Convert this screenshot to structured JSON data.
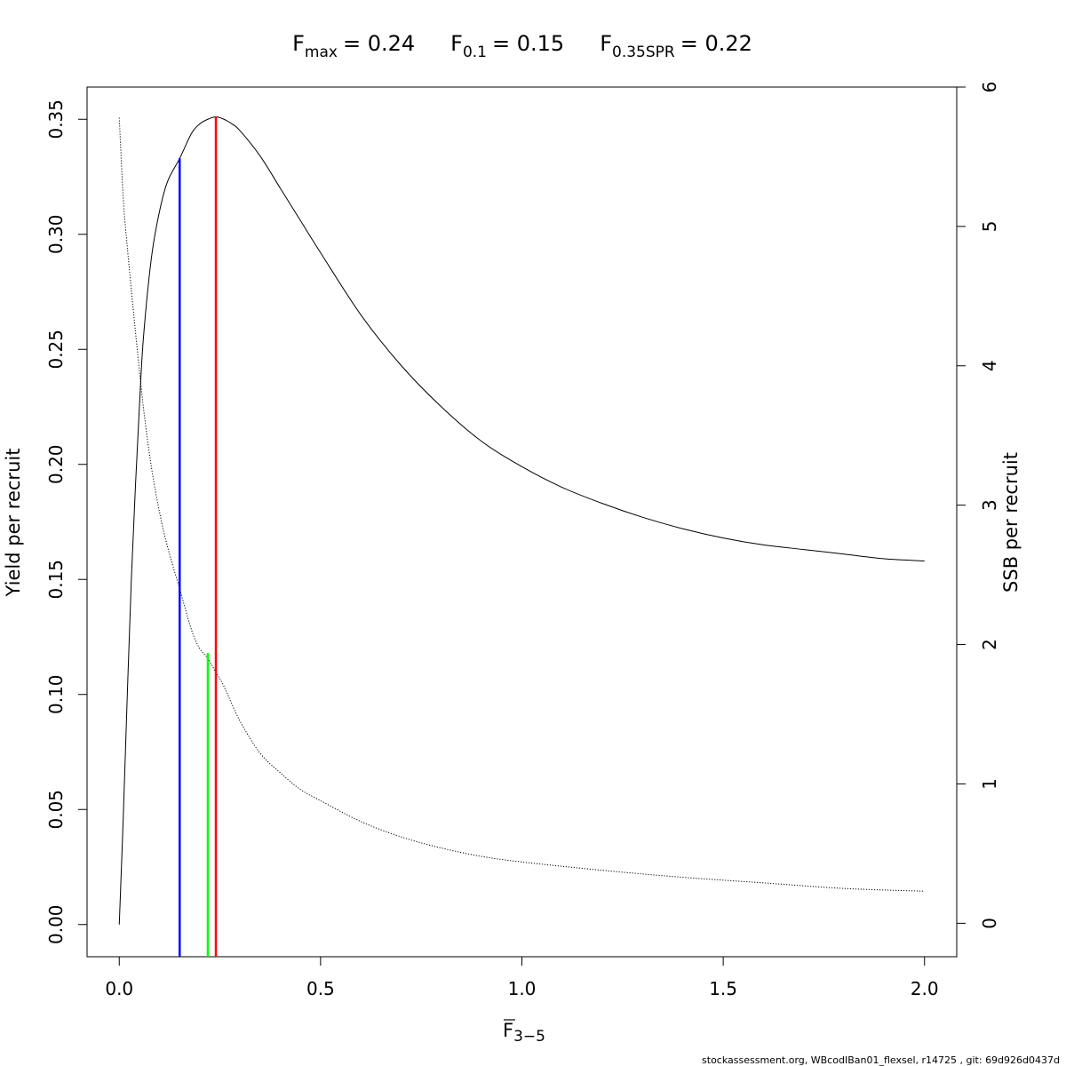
{
  "title_items": [
    {
      "main": "F",
      "sub": "max",
      "value": "= 0.24"
    },
    {
      "main": "F",
      "sub": "0.1",
      "value": "= 0.15"
    },
    {
      "main": "F",
      "sub": "0.35SPR",
      "value": "= 0.22"
    }
  ],
  "footer": "stockassessment.org, WBcodIBan01_flexsel, r14725 , git: 69d926d0437d",
  "chart_data": {
    "type": "line",
    "xlabel": {
      "main": "F",
      "sub": "3−5",
      "overbar": true
    },
    "ylabel": "Yield per recruit",
    "y2label": "SSB per recruit",
    "xlim": [
      -0.08,
      2.08
    ],
    "ylim": [
      -0.014,
      0.364
    ],
    "y2lim": [
      -0.24,
      6.0
    ],
    "x_ticks": [
      0.0,
      0.5,
      1.0,
      1.5,
      2.0
    ],
    "x_tick_labels": [
      "0.0",
      "0.5",
      "1.0",
      "1.5",
      "2.0"
    ],
    "y_ticks": [
      0.0,
      0.05,
      0.1,
      0.15,
      0.2,
      0.25,
      0.3,
      0.35
    ],
    "y_tick_labels": [
      "0.00",
      "0.05",
      "0.10",
      "0.15",
      "0.20",
      "0.25",
      "0.30",
      "0.35"
    ],
    "y2_ticks": [
      0,
      1,
      2,
      3,
      4,
      5,
      6
    ],
    "y2_tick_labels": [
      "0",
      "1",
      "2",
      "3",
      "4",
      "5",
      "6"
    ],
    "grid": false,
    "series": [
      {
        "name": "",
        "axis": "left",
        "style": "solid",
        "color": "#000000",
        "x": [
          0.0,
          0.01,
          0.02,
          0.03,
          0.04,
          0.05,
          0.06,
          0.08,
          0.1,
          0.12,
          0.15,
          0.18,
          0.2,
          0.22,
          0.24,
          0.26,
          0.28,
          0.3,
          0.35,
          0.4,
          0.45,
          0.5,
          0.6,
          0.7,
          0.8,
          0.9,
          1.0,
          1.1,
          1.2,
          1.3,
          1.4,
          1.5,
          1.6,
          1.7,
          1.8,
          1.9,
          2.0
        ],
        "y": [
          0.0,
          0.047,
          0.1,
          0.15,
          0.19,
          0.225,
          0.255,
          0.29,
          0.31,
          0.323,
          0.333,
          0.344,
          0.348,
          0.35,
          0.351,
          0.35,
          0.348,
          0.345,
          0.334,
          0.32,
          0.306,
          0.292,
          0.265,
          0.243,
          0.225,
          0.21,
          0.199,
          0.19,
          0.183,
          0.177,
          0.172,
          0.168,
          0.165,
          0.163,
          0.161,
          0.159,
          0.158
        ]
      },
      {
        "name": "",
        "axis": "right",
        "style": "dotted",
        "color": "#000000",
        "x": [
          0.0,
          0.01,
          0.02,
          0.04,
          0.06,
          0.08,
          0.1,
          0.12,
          0.15,
          0.18,
          0.2,
          0.22,
          0.24,
          0.26,
          0.3,
          0.35,
          0.4,
          0.45,
          0.5,
          0.6,
          0.7,
          0.8,
          0.9,
          1.0,
          1.2,
          1.4,
          1.6,
          1.8,
          2.0
        ],
        "y": [
          5.78,
          5.2,
          4.85,
          4.25,
          3.7,
          3.27,
          2.95,
          2.7,
          2.4,
          2.1,
          1.97,
          1.9,
          1.8,
          1.7,
          1.45,
          1.22,
          1.08,
          0.96,
          0.88,
          0.73,
          0.62,
          0.54,
          0.48,
          0.44,
          0.38,
          0.33,
          0.29,
          0.25,
          0.23
        ]
      }
    ],
    "reference_lines": [
      {
        "name": "F0.1",
        "x": 0.15,
        "ymax": 0.333,
        "color": "#0000ff"
      },
      {
        "name": "F0.35SPR",
        "x": 0.22,
        "ymax": 0.118,
        "color": "#00ff00"
      },
      {
        "name": "Fmax",
        "x": 0.24,
        "ymax": 0.351,
        "color": "#ff0000"
      }
    ]
  }
}
